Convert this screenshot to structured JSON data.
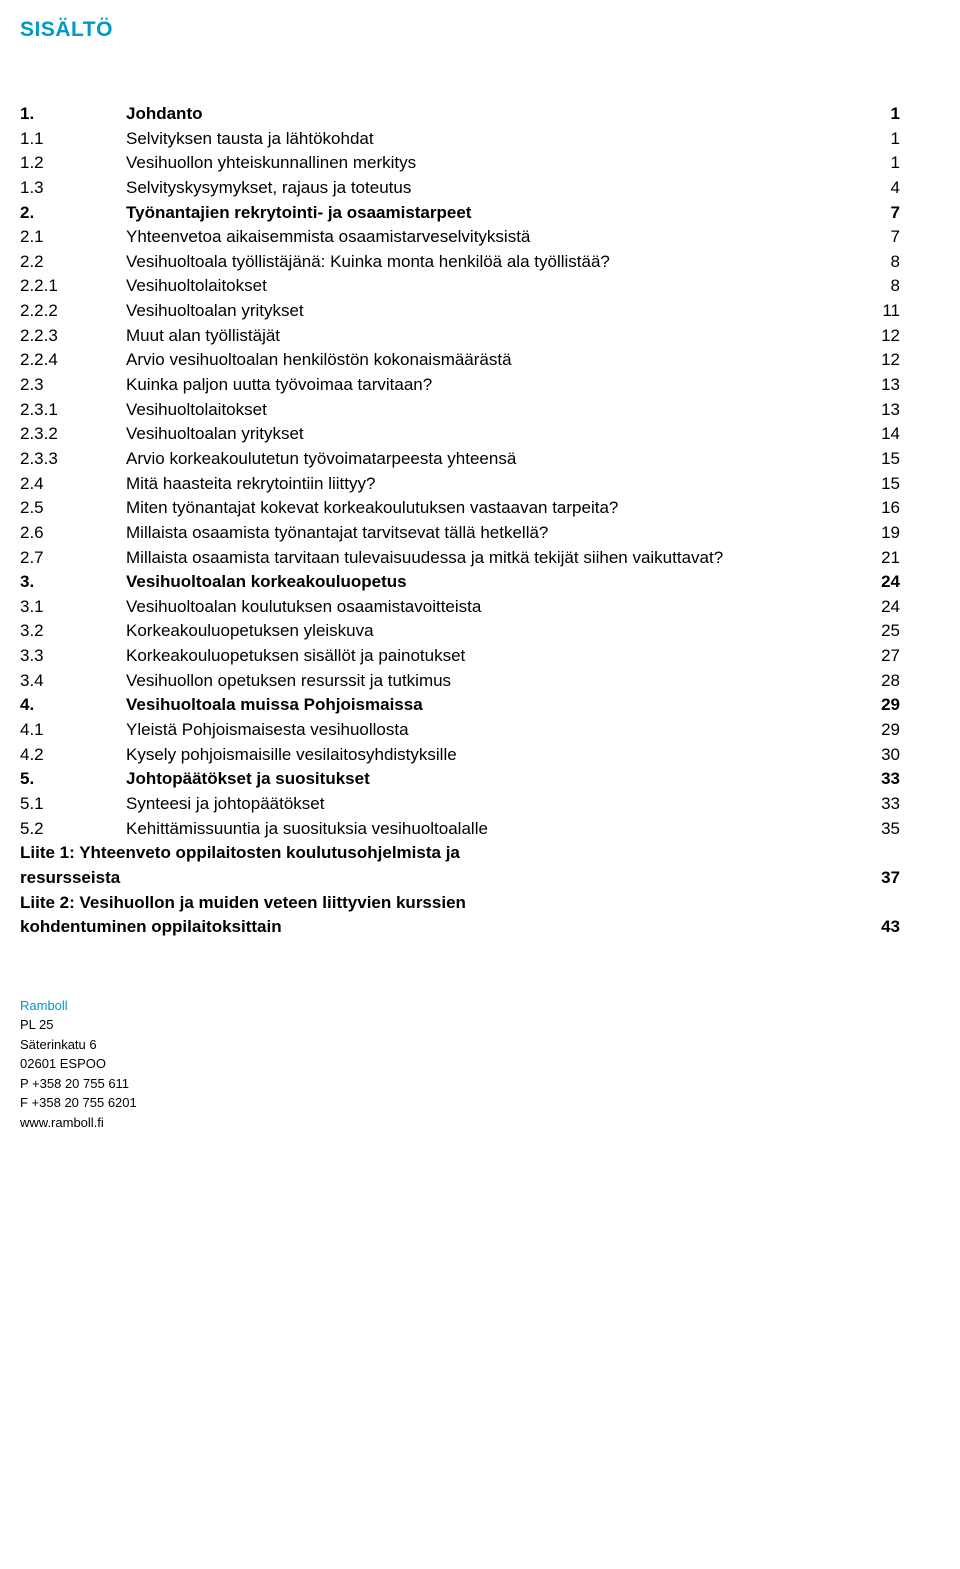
{
  "heading": "SISÄLTÖ",
  "toc": [
    {
      "num": "1.",
      "title": "Johdanto",
      "page": "1",
      "bold": true
    },
    {
      "num": "1.1",
      "title": "Selvityksen tausta ja lähtökohdat",
      "page": "1"
    },
    {
      "num": "1.2",
      "title": "Vesihuollon yhteiskunnallinen merkitys",
      "page": "1"
    },
    {
      "num": "1.3",
      "title": "Selvityskysymykset, rajaus ja toteutus",
      "page": "4"
    },
    {
      "num": "2.",
      "title": "Työnantajien rekrytointi- ja osaamistarpeet",
      "page": "7",
      "bold": true
    },
    {
      "num": "2.1",
      "title": "Yhteenvetoa aikaisemmista osaamistarveselvityksistä",
      "page": "7"
    },
    {
      "num": "2.2",
      "title": "Vesihuoltoala työllistäjänä: Kuinka monta henkilöä ala työllistää?",
      "page": "8"
    },
    {
      "num": "2.2.1",
      "title": "Vesihuoltolaitokset",
      "page": "8"
    },
    {
      "num": "2.2.2",
      "title": "Vesihuoltoalan yritykset",
      "page": "11"
    },
    {
      "num": "2.2.3",
      "title": "Muut alan työllistäjät",
      "page": "12"
    },
    {
      "num": "2.2.4",
      "title": "Arvio vesihuoltoalan henkilöstön kokonaismäärästä",
      "page": "12"
    },
    {
      "num": "2.3",
      "title": "Kuinka paljon uutta työvoimaa tarvitaan?",
      "page": "13"
    },
    {
      "num": "2.3.1",
      "title": "Vesihuoltolaitokset",
      "page": "13"
    },
    {
      "num": "2.3.2",
      "title": "Vesihuoltoalan yritykset",
      "page": "14"
    },
    {
      "num": "2.3.3",
      "title": "Arvio korkeakoulutetun työvoimatarpeesta yhteensä",
      "page": "15"
    },
    {
      "num": "2.4",
      "title": "Mitä haasteita rekrytointiin liittyy?",
      "page": "15"
    },
    {
      "num": "2.5",
      "title": "Miten työnantajat kokevat korkeakoulutuksen vastaavan tarpeita?",
      "page": "16"
    },
    {
      "num": "2.6",
      "title": "Millaista osaamista työnantajat tarvitsevat tällä hetkellä?",
      "page": "19"
    },
    {
      "num": "2.7",
      "title": "Millaista osaamista tarvitaan tulevaisuudessa ja mitkä tekijät siihen vaikuttavat?",
      "page": "21"
    },
    {
      "num": "3.",
      "title": "Vesihuoltoalan korkeakouluopetus",
      "page": "24",
      "bold": true
    },
    {
      "num": "3.1",
      "title": "Vesihuoltoalan koulutuksen osaamistavoitteista",
      "page": "24"
    },
    {
      "num": "3.2",
      "title": "Korkeakouluopetuksen yleiskuva",
      "page": "25"
    },
    {
      "num": "3.3",
      "title": "Korkeakouluopetuksen sisällöt ja painotukset",
      "page": "27"
    },
    {
      "num": "3.4",
      "title": "Vesihuollon opetuksen resurssit ja tutkimus",
      "page": "28"
    },
    {
      "num": "4.",
      "title": "Vesihuoltoala muissa Pohjoismaissa",
      "page": "29",
      "bold": true
    },
    {
      "num": "4.1",
      "title": "Yleistä Pohjoismaisesta vesihuollosta",
      "page": "29"
    },
    {
      "num": "4.2",
      "title": "Kysely pohjoismaisille vesilaitosyhdistyksille",
      "page": "30"
    },
    {
      "num": "5.",
      "title": "Johtopäätökset ja suositukset",
      "page": "33",
      "bold": true
    },
    {
      "num": "5.1",
      "title": "Synteesi ja johtopäätökset",
      "page": "33"
    },
    {
      "num": "5.2",
      "title": "Kehittämissuuntia ja suosituksia vesihuoltoalalle",
      "page": "35"
    }
  ],
  "appendices": [
    {
      "line1": "Liite 1: Yhteenveto oppilaitosten koulutusohjelmista ja",
      "line2": "resursseista",
      "page": "37"
    },
    {
      "line1": "Liite 2: Vesihuollon ja muiden veteen liittyvien kurssien",
      "line2": "kohdentuminen oppilaitoksittain",
      "page": "43"
    }
  ],
  "footer": {
    "company": "Ramboll",
    "line1": "PL 25",
    "line2": "Säterinkatu 6",
    "line3": "02601 ESPOO",
    "line4": "P  +358 20 755 611",
    "line5": "F  +358 20 755 6201",
    "line6": "www.ramboll.fi"
  }
}
